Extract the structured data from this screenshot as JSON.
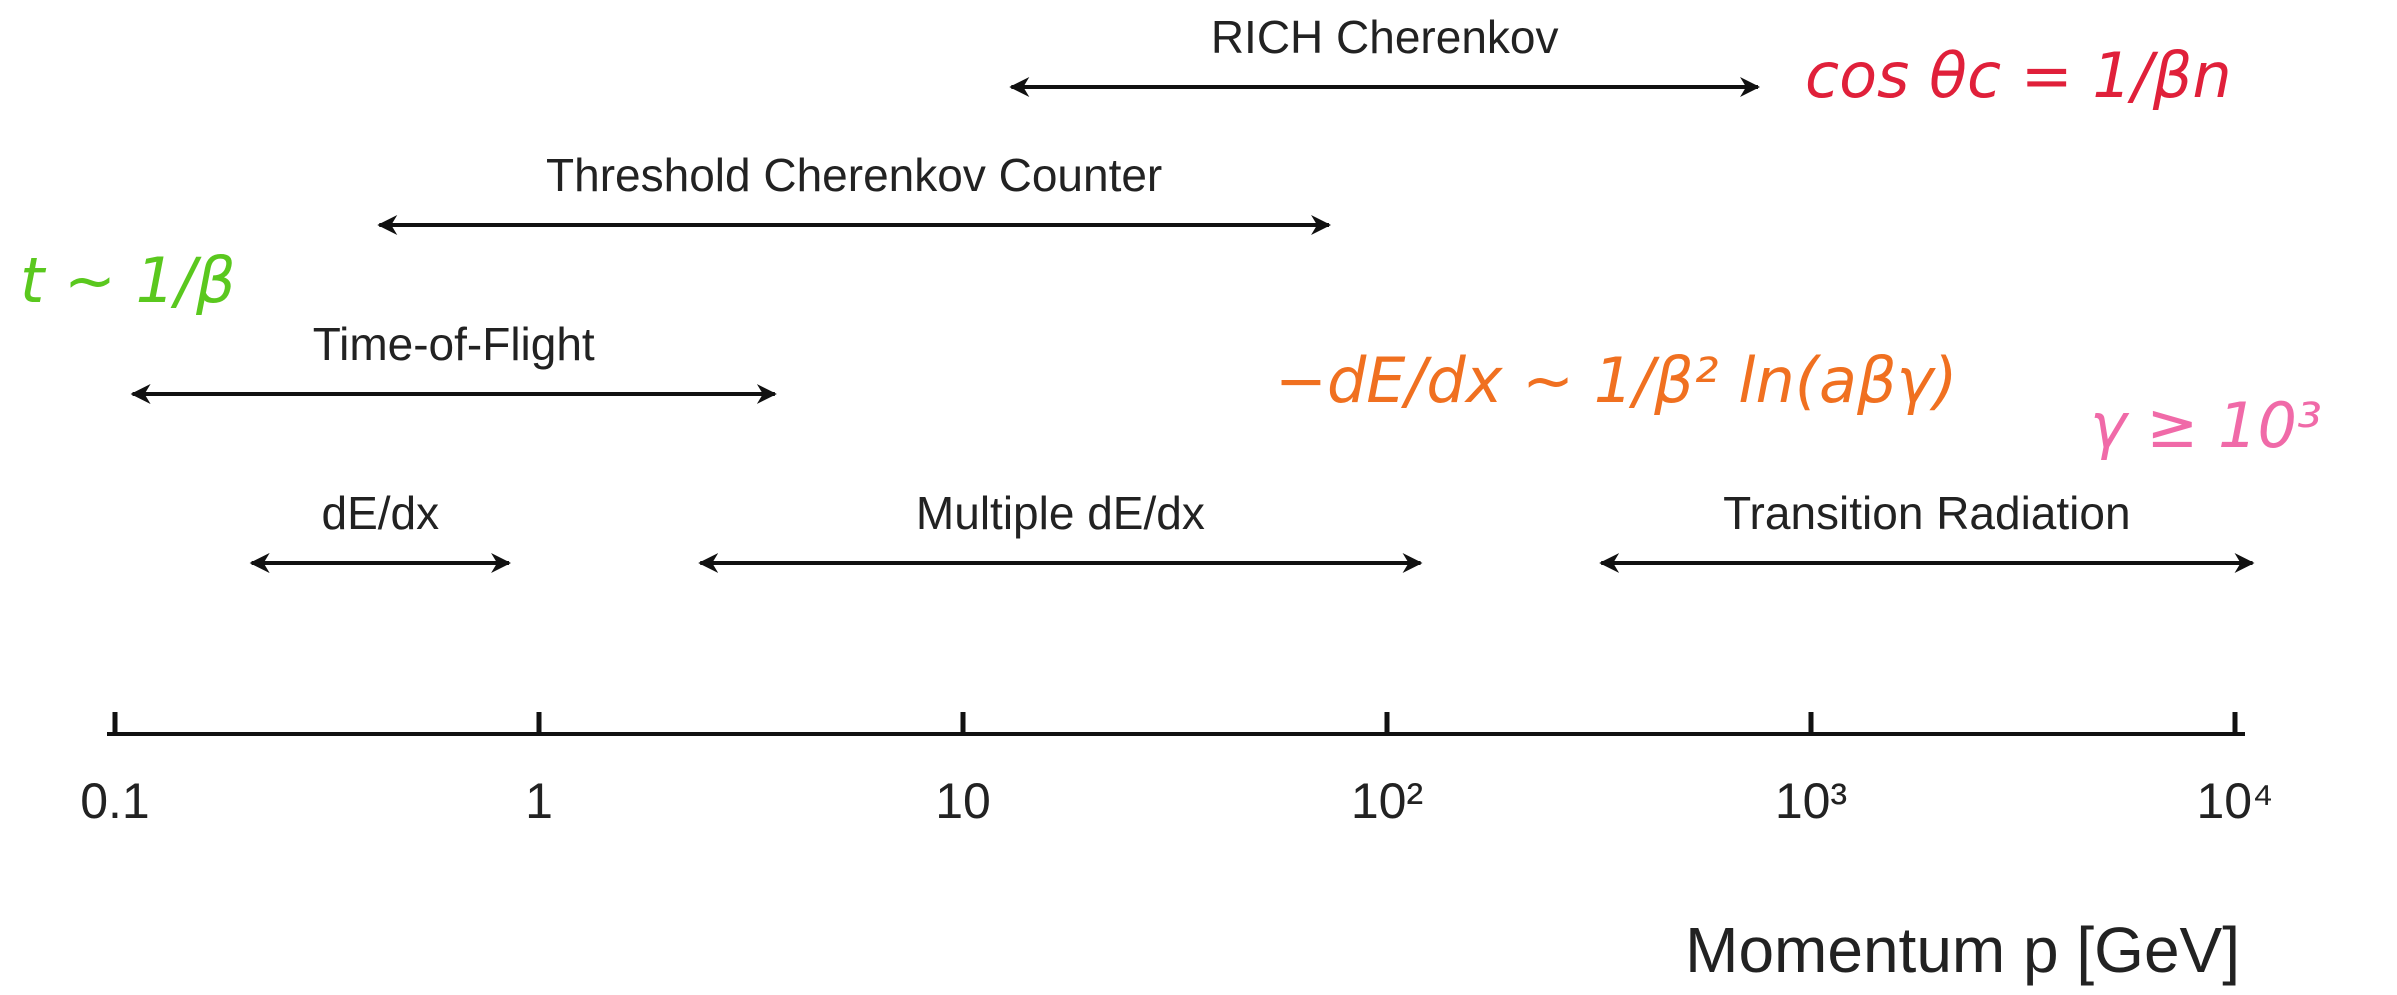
{
  "chart_data": {
    "type": "range",
    "categories": [
      "RICH Cherenkov",
      "Threshold Cherenkov Counter",
      "Time-of-Flight",
      "dE/dx",
      "Multiple dE/dx",
      "Transition Radiation"
    ],
    "low": [
      13,
      0.42,
      0.11,
      0.21,
      2.4,
      320
    ],
    "high": [
      750,
      73,
      3.6,
      0.85,
      120,
      11000
    ],
    "xlim": [
      0.1,
      10000
    ],
    "xticks": [
      0.1,
      1,
      10,
      {
        "value": 100,
        "label": "10²"
      },
      {
        "value": 1000,
        "label": "10³"
      },
      {
        "value": 10000,
        "label": "10⁴"
      }
    ],
    "xscale": "log",
    "xlabel": "Momentum p [GeV]",
    "color": "#111111",
    "annotations": [
      {
        "text": "cos θc = 1/βn",
        "color": "#e0203a"
      },
      {
        "text": "t ~ 1/β",
        "color": "#5ac81e"
      },
      {
        "text": "−dE/dx ~ 1/β² ln(aβγ)",
        "color": "#f07020"
      },
      {
        "text": "γ ≥ 10³",
        "color": "#f06aa8"
      }
    ]
  }
}
